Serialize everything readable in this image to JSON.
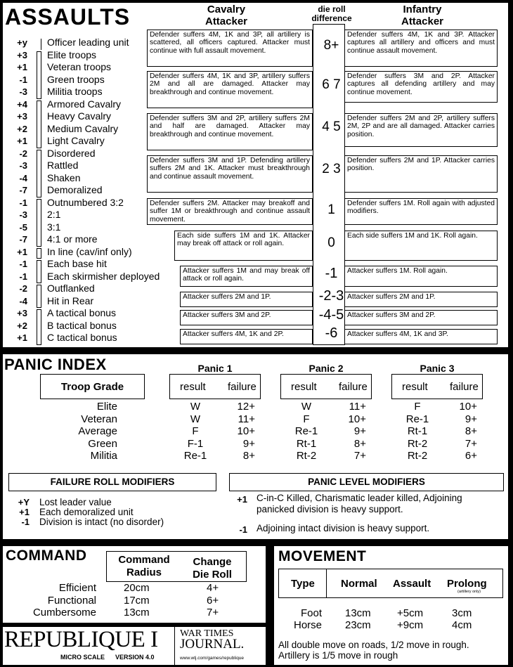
{
  "assaults": {
    "title": "ASSAULTS",
    "cavalry_header": [
      "Cavalry",
      "Attacker"
    ],
    "die_header": [
      "die roll",
      "difference"
    ],
    "infantry_header": [
      "Infantry",
      "Attacker"
    ],
    "modifiers": [
      {
        "value": "+y",
        "label": "Officer leading unit"
      },
      {
        "value": "+3",
        "label": "Elite troops"
      },
      {
        "value": "+1",
        "label": "Veteran troops"
      },
      {
        "value": "-1",
        "label": "Green troops"
      },
      {
        "value": "-3",
        "label": "Militia troops"
      },
      {
        "value": "+4",
        "label": "Armored Cavalry"
      },
      {
        "value": "+3",
        "label": "Heavy Cavalry"
      },
      {
        "value": "+2",
        "label": "Medium Cavalry"
      },
      {
        "value": "+1",
        "label": "Light Cavalry"
      },
      {
        "value": "-2",
        "label": "Disordered"
      },
      {
        "value": "-3",
        "label": "Rattled"
      },
      {
        "value": "-4",
        "label": "Shaken"
      },
      {
        "value": "-7",
        "label": "Demoralized"
      },
      {
        "value": "-1",
        "label": "Outnumbered 3:2"
      },
      {
        "value": "-3",
        "label": "2:1"
      },
      {
        "value": "-5",
        "label": "3:1"
      },
      {
        "value": "-7",
        "label": "4:1 or more"
      },
      {
        "value": "+1",
        "label": "In line (cav/inf only)"
      },
      {
        "value": "-1",
        "label": "Each base hit"
      },
      {
        "value": "-1",
        "label": "Each skirmisher deployed"
      },
      {
        "value": "-2",
        "label": "Outflanked"
      },
      {
        "value": "-4",
        "label": "Hit in Rear"
      },
      {
        "value": "+3",
        "label": "A tactical bonus"
      },
      {
        "value": "+2",
        "label": "B tactical bonus"
      },
      {
        "value": "+1",
        "label": "C tactical bonus"
      }
    ],
    "results": [
      {
        "roll": "8+",
        "cavalry": "Defender suffers 4M, 1K and 3P, all artillery is scattered, all officers captured. Attacker must continue with full assault movement.",
        "infantry": "Defender suffers 4M, 1K and 3P. Attacker captures all artillery and officers and must continue assault movement."
      },
      {
        "roll": "6 7",
        "cavalry": "Defender suffers 4M, 1K and 3P, artillery suffers 2M and all are damaged. Attacker may breakthrough and continue movement.",
        "infantry": "Defender suffers 3M and 2P. Attacker captures all defending artillery and may continue movement."
      },
      {
        "roll": "4 5",
        "cavalry": "Defender suffers 3M and 2P, artillery suffers 2M and half are damaged. Attacker may breakthrough and continue movement.",
        "infantry": "Defender suffers 2M and 2P, artillery suffers 2M, 2P and are all damaged. Attacker carries position."
      },
      {
        "roll": "2 3",
        "cavalry": "Defender suffers 3M and 1P. Defending artillery suffers 2M and 1K. Attacker must breakthrough and continue assault movement.",
        "infantry": "Defender suffers 2M and 1P. Attacker carries position."
      },
      {
        "roll": "1",
        "cavalry": "Defender suffers 2M. Attacker may breakoff and suffer 1M or breakthrough and continue assault movement.",
        "infantry": "Defender suffers 1M. Roll again with adjusted modifiers."
      },
      {
        "roll": "0",
        "cavalry": "Each side suffers 1M and 1K. Attacker may break off attack or roll again.",
        "infantry": "Each side suffers 1M and 1K. Roll again."
      },
      {
        "roll": "-1",
        "cavalry": "Attacker suffers 1M and may break off attack or roll again.",
        "infantry": "Attacker suffers 1M. Roll again."
      },
      {
        "roll": "-2-3",
        "cavalry": "Attacker suffers 2M and 1P.",
        "infantry": "Attacker suffers 2M and 1P."
      },
      {
        "roll": "-4-5",
        "cavalry": "Attacker suffers 3M and 2P.",
        "infantry": "Attacker suffers 3M and 2P."
      },
      {
        "roll": "-6",
        "cavalry": "Attacker suffers 4M, 1K and 2P.",
        "infantry": "Attacker suffers 4M, 1K and 3P."
      }
    ]
  },
  "panic": {
    "title": "PANIC INDEX",
    "troop_grade_header": "Troop Grade",
    "panic_headers": [
      "Panic 1",
      "Panic 2",
      "Panic 3"
    ],
    "result_label": "result",
    "failure_label": "failure",
    "rows": [
      {
        "grade": "Elite",
        "values": [
          [
            "W",
            "12+"
          ],
          [
            "W",
            "11+"
          ],
          [
            "F",
            "10+"
          ]
        ]
      },
      {
        "grade": "Veteran",
        "values": [
          [
            "W",
            "11+"
          ],
          [
            "F",
            "10+"
          ],
          [
            "Re-1",
            "9+"
          ]
        ]
      },
      {
        "grade": "Average",
        "values": [
          [
            "F",
            "10+"
          ],
          [
            "Re-1",
            "9+"
          ],
          [
            "Rt-1",
            "8+"
          ]
        ]
      },
      {
        "grade": "Green",
        "values": [
          [
            "F-1",
            "9+"
          ],
          [
            "Rt-1",
            "8+"
          ],
          [
            "Rt-2",
            "7+"
          ]
        ]
      },
      {
        "grade": "Militia",
        "values": [
          [
            "Re-1",
            "8+"
          ],
          [
            "Rt-2",
            "7+"
          ],
          [
            "Rt-2",
            "6+"
          ]
        ]
      }
    ],
    "failure_modifiers": {
      "title": "FAILURE ROLL MODIFIERS",
      "items": [
        {
          "value": "+Y",
          "label": "Lost leader value"
        },
        {
          "value": "+1",
          "label": "Each demoralized unit"
        },
        {
          "value": "-1",
          "label": "Division is intact (no disorder)"
        }
      ]
    },
    "level_modifiers": {
      "title": "PANIC LEVEL MODIFIERS",
      "items": [
        {
          "value": "+1",
          "label": [
            "C-in-C Killed,  Charismatic leader killed, Adjoining",
            "panicked division is heavy support."
          ]
        },
        {
          "value": "-1",
          "label": [
            "Adjoining intact division is heavy support."
          ]
        }
      ]
    }
  },
  "command": {
    "title": "COMMAND",
    "headers": [
      [
        "Command",
        "Radius"
      ],
      [
        "Change",
        "Die Roll"
      ]
    ],
    "rows": [
      {
        "level": "Efficient",
        "radius": "20cm",
        "roll": "4+"
      },
      {
        "level": "Functional",
        "radius": "17cm",
        "roll": "6+"
      },
      {
        "level": "Cumbersome",
        "radius": "13cm",
        "roll": "7+"
      }
    ]
  },
  "logo": {
    "title": "REPUBLIQUE I",
    "scale": "MICRO SCALE",
    "version": "VERSION 4.0",
    "publisher": [
      "WAR TIMES",
      "JOURNAL."
    ],
    "url": "www.wtj.com/games/republique"
  },
  "movement": {
    "title": "MOVEMENT",
    "headers": [
      "Type",
      "Normal",
      "Assault",
      "Prolong"
    ],
    "prolong_note": "(artillery only)",
    "rows": [
      {
        "type": "Foot",
        "normal": "13cm",
        "assault": "+5cm",
        "prolong": "3cm"
      },
      {
        "type": "Horse",
        "normal": "23cm",
        "assault": "+9cm",
        "prolong": "4cm"
      }
    ],
    "notes": [
      "All double move on roads, 1/2 move in rough.",
      "Artillery is 1/5 move in rough"
    ]
  }
}
